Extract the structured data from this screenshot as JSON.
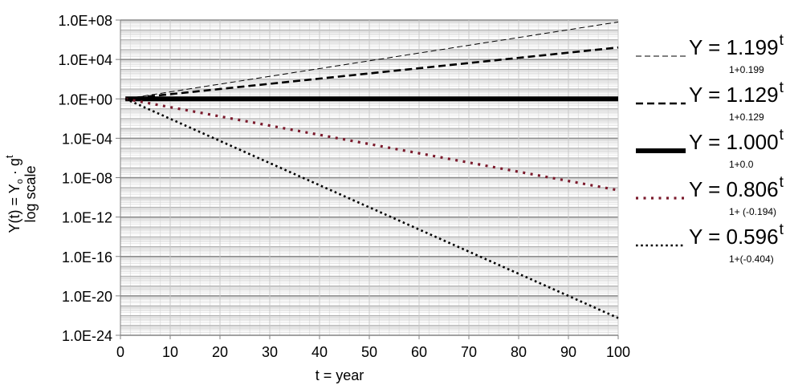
{
  "chart_data": {
    "type": "line",
    "xlabel": "t = year",
    "ylabel_line1_pre": "Y(t) = Y",
    "ylabel_line1_sub": "o",
    "ylabel_line1_mid": " · g",
    "ylabel_line1_sup": "t",
    "ylabel_line2": "log scale",
    "xlim": [
      0,
      100
    ],
    "x_ticks": [
      "0",
      "10",
      "20",
      "30",
      "40",
      "50",
      "60",
      "70",
      "80",
      "90",
      "100"
    ],
    "y_scale": "log",
    "ylim_exponent": [
      -24,
      8
    ],
    "y_ticks": [
      "1.0E+08",
      "1.0E+04",
      "1.0E+00",
      "1.0E-04",
      "1.0E-08",
      "1.0E-12",
      "1.0E-16",
      "1.0E-20",
      "1.0E-24"
    ],
    "grid": true,
    "legend_position": "right",
    "series": [
      {
        "name": "Y = 1.199^t",
        "base": 1.199,
        "eq": "Y = 1.199",
        "sup": "t",
        "sub": "1+0.199",
        "style": "thin-dash",
        "color": "#000000"
      },
      {
        "name": "Y = 1.129^t",
        "base": 1.129,
        "eq": "Y = 1.129",
        "sup": "t",
        "sub": "1+0.129",
        "style": "dash",
        "color": "#000000"
      },
      {
        "name": "Y = 1.000^t",
        "base": 1.0,
        "eq": "Y = 1.000",
        "sup": "t",
        "sub": "1+0.0",
        "style": "thick-solid",
        "color": "#000000"
      },
      {
        "name": "Y = 0.806^t",
        "base": 0.806,
        "eq": "Y = 0.806",
        "sup": "t",
        "sub": "1+ (-0.194)",
        "style": "dot-thick",
        "color": "#7b1a2c"
      },
      {
        "name": "Y = 0.596^t",
        "base": 0.596,
        "eq": "Y = 0.596",
        "sup": "t",
        "sub": "1+(-0.404)",
        "style": "dot",
        "color": "#000000"
      }
    ]
  }
}
